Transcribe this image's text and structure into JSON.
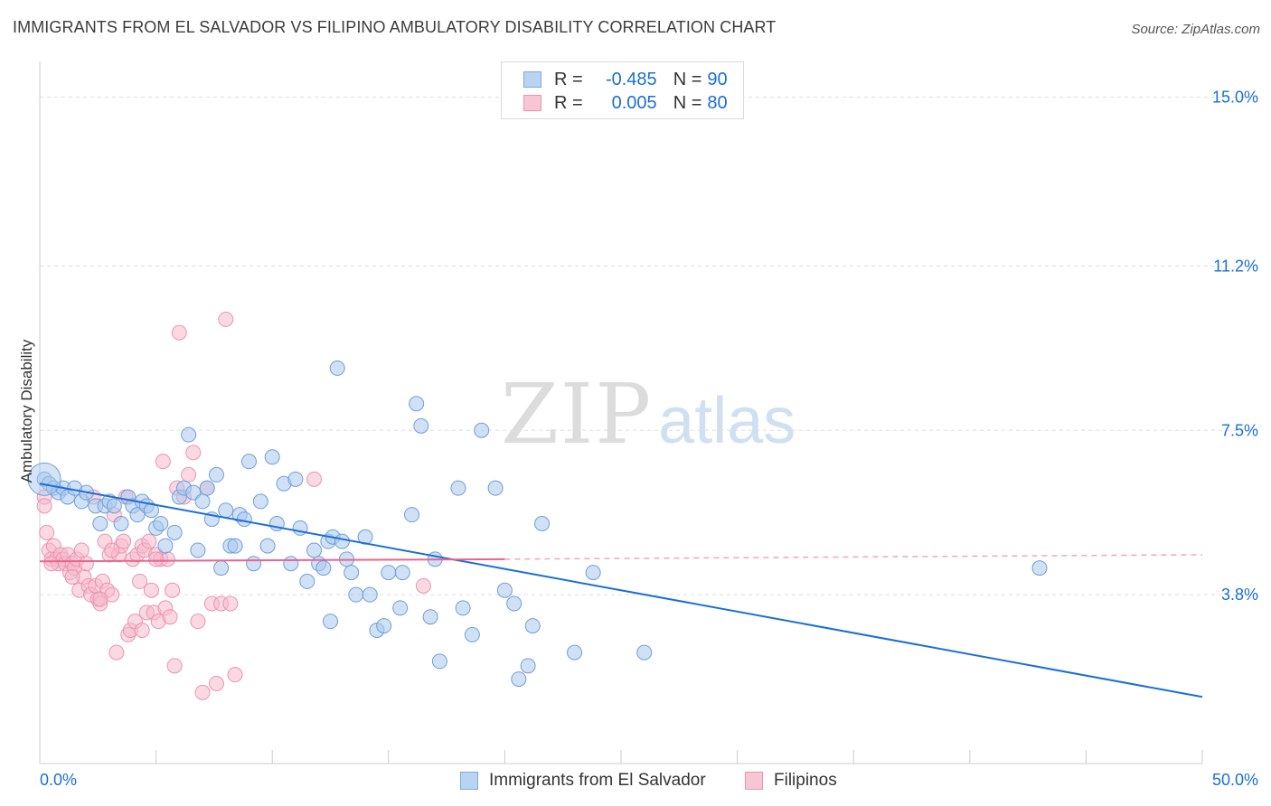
{
  "header": {
    "title": "IMMIGRANTS FROM EL SALVADOR VS FILIPINO AMBULATORY DISABILITY CORRELATION CHART",
    "source": "Source: ZipAtlas.com"
  },
  "watermark": {
    "zip": "ZIP",
    "atlas": "atlas"
  },
  "legend": {
    "rows": [
      {
        "r_label": "R =",
        "r_value": "-0.485",
        "n_label": "N =",
        "n_value": "90"
      },
      {
        "r_label": "R =",
        "r_value": "0.005",
        "n_label": "N =",
        "n_value": "80"
      }
    ]
  },
  "bottom_legend": {
    "series1": "Immigrants from El Salvador",
    "series2": "Filipinos"
  },
  "colors": {
    "blue": "#1a6fd6",
    "blue_fill": "#a9c8ee",
    "pink": "#e8648e",
    "pink_fill": "#f6b9cc",
    "grid": "#dddddd",
    "tick_label": "#1a6fd6"
  },
  "chart_data": {
    "type": "scatter",
    "title": "IMMIGRANTS FROM EL SALVADOR VS FILIPINO AMBULATORY DISABILITY CORRELATION CHART",
    "ylabel": "Ambulatory Disability",
    "xlabel": "",
    "xlim": [
      0,
      50
    ],
    "ylim": [
      0,
      15.6
    ],
    "x_tick_labels": [
      "0.0%",
      "50.0%"
    ],
    "y_ticks": [
      3.8,
      7.5,
      11.2,
      15.0
    ],
    "y_tick_labels": [
      "3.8%",
      "7.5%",
      "11.2%",
      "15.0%"
    ],
    "grid": true,
    "legend_position": "top-center",
    "series": [
      {
        "name": "Immigrants from El Salvador",
        "color": "#1a6fd6",
        "r": -0.485,
        "n": 90,
        "trend": {
          "x": [
            0,
            50
          ],
          "y": [
            6.3,
            1.5
          ]
        },
        "points": [
          [
            0.2,
            6.4
          ],
          [
            0.4,
            6.3
          ],
          [
            0.6,
            6.2
          ],
          [
            0.8,
            6.1
          ],
          [
            1.0,
            6.2
          ],
          [
            1.2,
            6.0
          ],
          [
            1.5,
            6.2
          ],
          [
            1.8,
            5.9
          ],
          [
            2.0,
            6.1
          ],
          [
            2.4,
            5.8
          ],
          [
            2.6,
            5.4
          ],
          [
            2.8,
            5.8
          ],
          [
            3.0,
            5.9
          ],
          [
            3.2,
            5.8
          ],
          [
            3.5,
            5.4
          ],
          [
            3.8,
            6.0
          ],
          [
            4.0,
            5.8
          ],
          [
            4.2,
            5.6
          ],
          [
            4.4,
            5.9
          ],
          [
            4.6,
            5.8
          ],
          [
            4.8,
            5.7
          ],
          [
            5.0,
            5.3
          ],
          [
            5.2,
            5.4
          ],
          [
            5.4,
            4.9
          ],
          [
            5.8,
            5.2
          ],
          [
            6.0,
            6.0
          ],
          [
            6.2,
            6.2
          ],
          [
            6.4,
            7.4
          ],
          [
            6.6,
            6.1
          ],
          [
            6.8,
            4.8
          ],
          [
            7.0,
            5.9
          ],
          [
            7.2,
            6.2
          ],
          [
            7.4,
            5.5
          ],
          [
            7.6,
            6.5
          ],
          [
            7.8,
            4.4
          ],
          [
            8.0,
            5.7
          ],
          [
            8.2,
            4.9
          ],
          [
            8.4,
            4.9
          ],
          [
            8.6,
            5.6
          ],
          [
            8.8,
            5.5
          ],
          [
            9.0,
            6.8
          ],
          [
            9.2,
            4.5
          ],
          [
            9.5,
            5.9
          ],
          [
            9.8,
            4.9
          ],
          [
            10.0,
            6.9
          ],
          [
            10.2,
            5.4
          ],
          [
            10.5,
            6.3
          ],
          [
            10.8,
            4.5
          ],
          [
            11.0,
            6.4
          ],
          [
            11.2,
            5.3
          ],
          [
            11.5,
            4.1
          ],
          [
            11.8,
            4.8
          ],
          [
            12.0,
            4.5
          ],
          [
            12.2,
            4.4
          ],
          [
            12.4,
            5.0
          ],
          [
            12.6,
            5.1
          ],
          [
            12.8,
            8.9
          ],
          [
            13.0,
            5.0
          ],
          [
            13.2,
            4.6
          ],
          [
            13.4,
            4.3
          ],
          [
            13.6,
            3.8
          ],
          [
            14.0,
            5.1
          ],
          [
            14.2,
            3.8
          ],
          [
            14.5,
            3.0
          ],
          [
            14.8,
            3.1
          ],
          [
            15.0,
            4.3
          ],
          [
            15.5,
            3.5
          ],
          [
            15.6,
            4.3
          ],
          [
            16.0,
            5.6
          ],
          [
            16.2,
            8.1
          ],
          [
            16.4,
            7.6
          ],
          [
            16.8,
            3.3
          ],
          [
            17.0,
            4.6
          ],
          [
            17.2,
            2.3
          ],
          [
            18.0,
            6.2
          ],
          [
            18.2,
            3.5
          ],
          [
            18.6,
            2.9
          ],
          [
            19.0,
            7.5
          ],
          [
            19.6,
            6.2
          ],
          [
            20.0,
            3.9
          ],
          [
            20.4,
            3.6
          ],
          [
            20.6,
            1.9
          ],
          [
            21.0,
            2.2
          ],
          [
            21.2,
            3.1
          ],
          [
            21.6,
            5.4
          ],
          [
            23.0,
            2.5
          ],
          [
            23.8,
            4.3
          ],
          [
            26.0,
            2.5
          ],
          [
            43.0,
            4.4
          ],
          [
            12.5,
            3.2
          ]
        ]
      },
      {
        "name": "Filipinos",
        "color": "#e8648e",
        "r": 0.005,
        "n": 80,
        "trend": {
          "x": [
            0,
            20
          ],
          "y": [
            4.55,
            4.6
          ]
        },
        "trend_dashed": {
          "x": [
            20,
            50
          ],
          "y": [
            4.6,
            4.7
          ]
        },
        "points": [
          [
            0.2,
            6.0
          ],
          [
            0.2,
            5.8
          ],
          [
            0.3,
            5.2
          ],
          [
            0.4,
            4.8
          ],
          [
            0.5,
            4.6
          ],
          [
            0.6,
            4.9
          ],
          [
            0.7,
            4.6
          ],
          [
            0.8,
            4.5
          ],
          [
            0.9,
            4.7
          ],
          [
            1.0,
            4.6
          ],
          [
            1.1,
            4.5
          ],
          [
            1.2,
            4.7
          ],
          [
            1.3,
            4.3
          ],
          [
            1.4,
            4.5
          ],
          [
            1.5,
            4.4
          ],
          [
            1.6,
            4.6
          ],
          [
            1.7,
            3.9
          ],
          [
            1.8,
            4.8
          ],
          [
            1.9,
            4.2
          ],
          [
            2.0,
            4.5
          ],
          [
            2.1,
            4.0
          ],
          [
            2.2,
            3.8
          ],
          [
            2.3,
            6.0
          ],
          [
            2.4,
            4.0
          ],
          [
            2.5,
            3.7
          ],
          [
            2.6,
            3.6
          ],
          [
            2.7,
            4.1
          ],
          [
            2.8,
            5.0
          ],
          [
            2.9,
            3.9
          ],
          [
            3.0,
            4.7
          ],
          [
            3.1,
            3.8
          ],
          [
            3.2,
            5.6
          ],
          [
            3.3,
            2.5
          ],
          [
            3.4,
            4.7
          ],
          [
            3.5,
            4.9
          ],
          [
            3.6,
            5.0
          ],
          [
            3.7,
            6.0
          ],
          [
            3.8,
            2.9
          ],
          [
            3.9,
            3.0
          ],
          [
            4.0,
            4.6
          ],
          [
            4.1,
            3.2
          ],
          [
            4.2,
            4.7
          ],
          [
            4.3,
            4.1
          ],
          [
            4.4,
            4.9
          ],
          [
            4.5,
            4.8
          ],
          [
            4.6,
            3.4
          ],
          [
            4.7,
            5.0
          ],
          [
            4.8,
            3.9
          ],
          [
            4.9,
            3.4
          ],
          [
            5.0,
            4.7
          ],
          [
            5.1,
            3.2
          ],
          [
            5.2,
            4.6
          ],
          [
            5.3,
            6.8
          ],
          [
            5.4,
            3.5
          ],
          [
            5.5,
            4.6
          ],
          [
            5.6,
            3.3
          ],
          [
            5.7,
            3.9
          ],
          [
            5.8,
            2.2
          ],
          [
            5.9,
            6.2
          ],
          [
            6.0,
            9.7
          ],
          [
            6.2,
            6.0
          ],
          [
            6.4,
            6.5
          ],
          [
            6.6,
            7.0
          ],
          [
            6.8,
            3.2
          ],
          [
            7.0,
            1.6
          ],
          [
            7.2,
            6.2
          ],
          [
            7.4,
            3.6
          ],
          [
            7.6,
            1.8
          ],
          [
            7.8,
            3.6
          ],
          [
            8.0,
            10.0
          ],
          [
            8.2,
            3.6
          ],
          [
            8.4,
            2.0
          ],
          [
            0.5,
            4.5
          ],
          [
            1.4,
            4.2
          ],
          [
            2.6,
            3.7
          ],
          [
            3.1,
            4.8
          ],
          [
            4.4,
            3.0
          ],
          [
            5.0,
            4.6
          ],
          [
            11.8,
            6.4
          ],
          [
            16.5,
            4.0
          ]
        ]
      }
    ]
  }
}
